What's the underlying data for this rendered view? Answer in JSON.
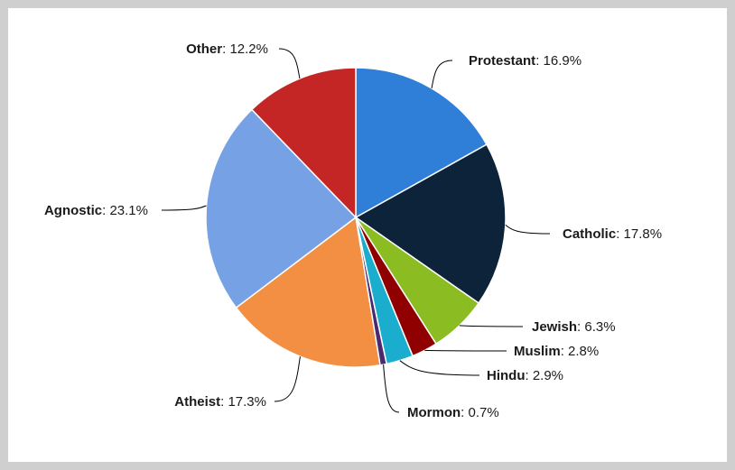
{
  "chart_data": {
    "type": "pie",
    "title": "",
    "slices": [
      {
        "label": "Protestant",
        "value": 16.9,
        "value_text": "16.9%",
        "color": "#2f7ed8"
      },
      {
        "label": "Catholic",
        "value": 17.8,
        "value_text": "17.8%",
        "color": "#0d233a"
      },
      {
        "label": "Jewish",
        "value": 6.3,
        "value_text": "6.3%",
        "color": "#8bbc21"
      },
      {
        "label": "Muslim",
        "value": 2.8,
        "value_text": "2.8%",
        "color": "#910000"
      },
      {
        "label": "Hindu",
        "value": 2.9,
        "value_text": "2.9%",
        "color": "#1aadce"
      },
      {
        "label": "Mormon",
        "value": 0.7,
        "value_text": "0.7%",
        "color": "#492970"
      },
      {
        "label": "Atheist",
        "value": 17.3,
        "value_text": "17.3%",
        "color": "#f28f43"
      },
      {
        "label": "Agnostic",
        "value": 23.1,
        "value_text": "23.1%",
        "color": "#77a1e5"
      },
      {
        "label": "Other",
        "value": 12.2,
        "value_text": "12.2%",
        "color": "#c42525"
      }
    ],
    "start_angle": "12 o'clock, clockwise",
    "legend": "none",
    "data_labels": "outside with connector lines"
  }
}
